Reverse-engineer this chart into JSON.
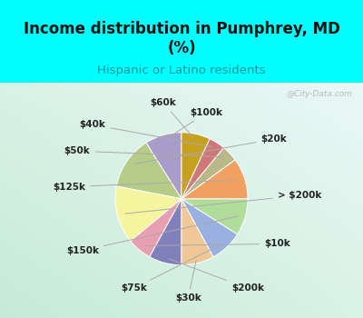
{
  "title": "Income distribution in Pumphrey, MD\n(%)",
  "subtitle": "Hispanic or Latino residents",
  "bg_top": "#00FFFF",
  "labels": [
    "$100k",
    "$20k",
    "> $200k",
    "$10k",
    "$200k",
    "$30k",
    "$75k",
    "$150k",
    "$125k",
    "$50k",
    "$40k",
    "$60k"
  ],
  "values": [
    9,
    13,
    14,
    6,
    8,
    8,
    8,
    9,
    10,
    4,
    4,
    7
  ],
  "colors": [
    "#a89ccb",
    "#b5cc88",
    "#f5f5a0",
    "#e8a0b0",
    "#8080bb",
    "#f0c898",
    "#9ab0e0",
    "#b0dd9a",
    "#f0a060",
    "#b8b888",
    "#d07878",
    "#c8a020"
  ],
  "startangle": 90,
  "label_positions": {
    "$100k": [
      0.38,
      1.3,
      "center"
    ],
    "$20k": [
      1.2,
      0.9,
      "left"
    ],
    "> $200k": [
      1.45,
      0.05,
      "left"
    ],
    "$10k": [
      1.25,
      -0.68,
      "left"
    ],
    "$200k": [
      0.75,
      -1.35,
      "left"
    ],
    "$30k": [
      0.1,
      -1.5,
      "center"
    ],
    "$75k": [
      -0.52,
      -1.35,
      "right"
    ],
    "$150k": [
      -1.25,
      -0.78,
      "right"
    ],
    "$125k": [
      -1.45,
      0.18,
      "right"
    ],
    "$50k": [
      -1.38,
      0.72,
      "right"
    ],
    "$40k": [
      -1.15,
      1.12,
      "right"
    ],
    "$60k": [
      -0.28,
      1.45,
      "center"
    ]
  },
  "watermark": "@City-Data.com",
  "label_fontsize": 7.5
}
